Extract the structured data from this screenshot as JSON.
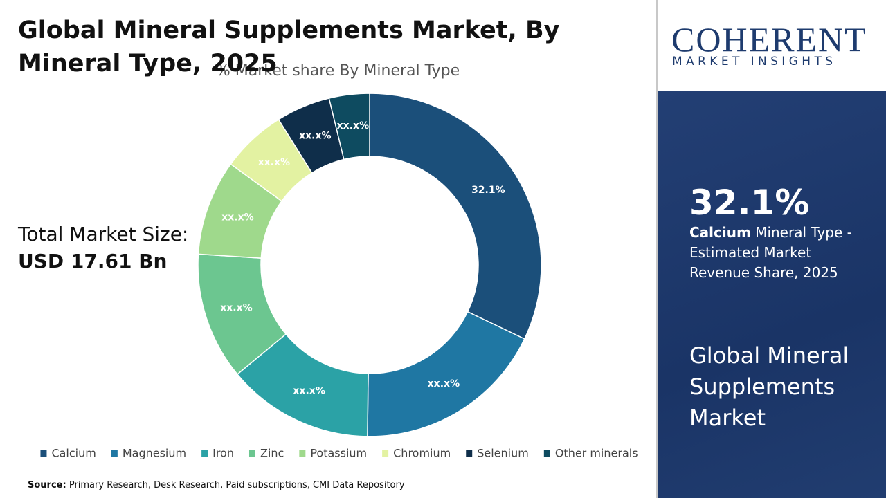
{
  "chart_data": {
    "type": "donut",
    "title": "Global Mineral Supplements Market, By Mineral Type, 2025",
    "subtitle": "% Market share By Mineral Type",
    "categories": [
      "Calcium",
      "Magnesium",
      "Iron",
      "Zinc",
      "Potassium",
      "Chromium",
      "Selenium",
      "Other minerals"
    ],
    "values": [
      32.1,
      18.1,
      13.8,
      12.0,
      9.0,
      6.1,
      5.1,
      3.8
    ],
    "value_labels": [
      "32.1%",
      "xx.x%",
      "xx.x%",
      "xx.x%",
      "xx.x%",
      "xx.x%",
      "xx.x%",
      "xx.x%"
    ],
    "colors": [
      "#1b4f7a",
      "#1f77a3",
      "#2ba2a6",
      "#6cc690",
      "#9fd98c",
      "#e3f2a2",
      "#0f2e4a",
      "#0e4b60"
    ],
    "legend": "bottom"
  },
  "total_market": {
    "label": "Total Market Size:",
    "value": "USD 17.61 Bn"
  },
  "source": {
    "label": "Source:",
    "text": "Primary Research, Desk Research, Paid subscriptions, CMI Data Repository"
  },
  "logo": {
    "name": "COHERENT",
    "tagline": "MARKET INSIGHTS"
  },
  "panel": {
    "highlight": "32.1%",
    "segment": "Calcium",
    "description": " Mineral Type - Estimated Market Revenue Share, 2025",
    "market": "Global Mineral Supplements Market"
  }
}
